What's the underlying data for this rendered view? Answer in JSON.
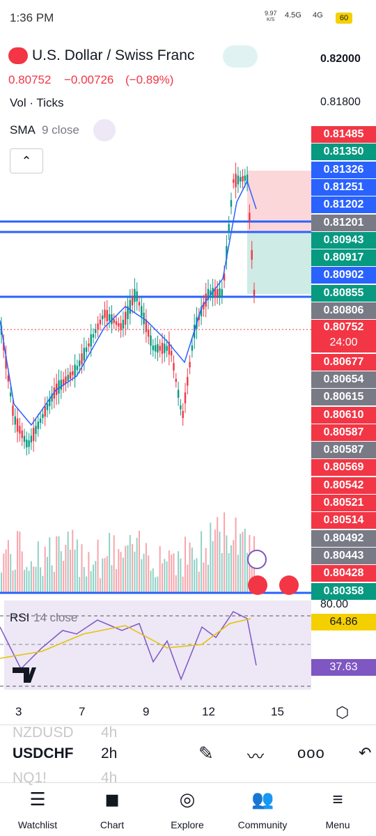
{
  "status_bar": {
    "time": "1:36 PM",
    "speed": "9.97",
    "speed_unit": "K/S",
    "net1": "4.5G",
    "net2": "4G",
    "battery": "60"
  },
  "header": {
    "title": "U.S. Dollar / Swiss Franc",
    "price": "0.80752",
    "change": "−0.00726",
    "change_pct": "(−0.89%)",
    "vol": "Vol · Ticks",
    "sma": "SMA",
    "sma_params": "9 close"
  },
  "price_scale": [
    {
      "label": "0.82000"
    },
    {
      "label": "0.81800"
    },
    {
      "label": "0.81485",
      "color": "#f23645"
    },
    {
      "label": "0.81350",
      "color": "#089981"
    },
    {
      "label": "0.81326",
      "color": "#2962ff"
    },
    {
      "label": "0.81251",
      "color": "#2962ff"
    },
    {
      "label": "0.81202",
      "color": "#2962ff"
    },
    {
      "label": "0.81201",
      "color": "#787b86"
    },
    {
      "label": "0.80943",
      "color": "#089981"
    },
    {
      "label": "0.80917",
      "color": "#089981"
    },
    {
      "label": "0.80902",
      "color": "#2962ff"
    },
    {
      "label": "0.80855",
      "color": "#089981"
    },
    {
      "label": "0.80806",
      "color": "#787b86"
    },
    {
      "label": "0.80752",
      "color": "#f23645",
      "countdown": "24:00"
    },
    {
      "label": "0.80677",
      "color": "#f23645"
    },
    {
      "label": "0.80654",
      "color": "#787b86"
    },
    {
      "label": "0.80615",
      "color": "#787b86"
    },
    {
      "label": "0.80610",
      "color": "#f23645"
    },
    {
      "label": "0.80587",
      "color": "#f23645"
    },
    {
      "label": "0.80587",
      "color": "#787b86"
    },
    {
      "label": "0.80569",
      "color": "#f23645"
    },
    {
      "label": "0.80542",
      "color": "#f23645"
    },
    {
      "label": "0.80521",
      "color": "#f23645"
    },
    {
      "label": "0.80514",
      "color": "#f23645"
    },
    {
      "label": "0.80492",
      "color": "#787b86"
    },
    {
      "label": "0.80443",
      "color": "#787b86"
    },
    {
      "label": "0.80428",
      "color": "#f23645"
    },
    {
      "label": "0.80358",
      "color": "#089981"
    }
  ],
  "rsi": {
    "name": "RSI",
    "params": "14 close",
    "level": "80.00",
    "value1": "64.86",
    "value2": "37.63"
  },
  "time_axis": [
    "3",
    "7",
    "9",
    "12",
    "15"
  ],
  "symbols": [
    {
      "symbol": "NZDUSD",
      "interval": "4h"
    },
    {
      "symbol": "USDCHF",
      "interval": "2h"
    },
    {
      "symbol": "NQ1!",
      "interval": "4h"
    }
  ],
  "nav": [
    "Watchlist",
    "Chart",
    "Explore",
    "Community",
    "Menu"
  ]
}
